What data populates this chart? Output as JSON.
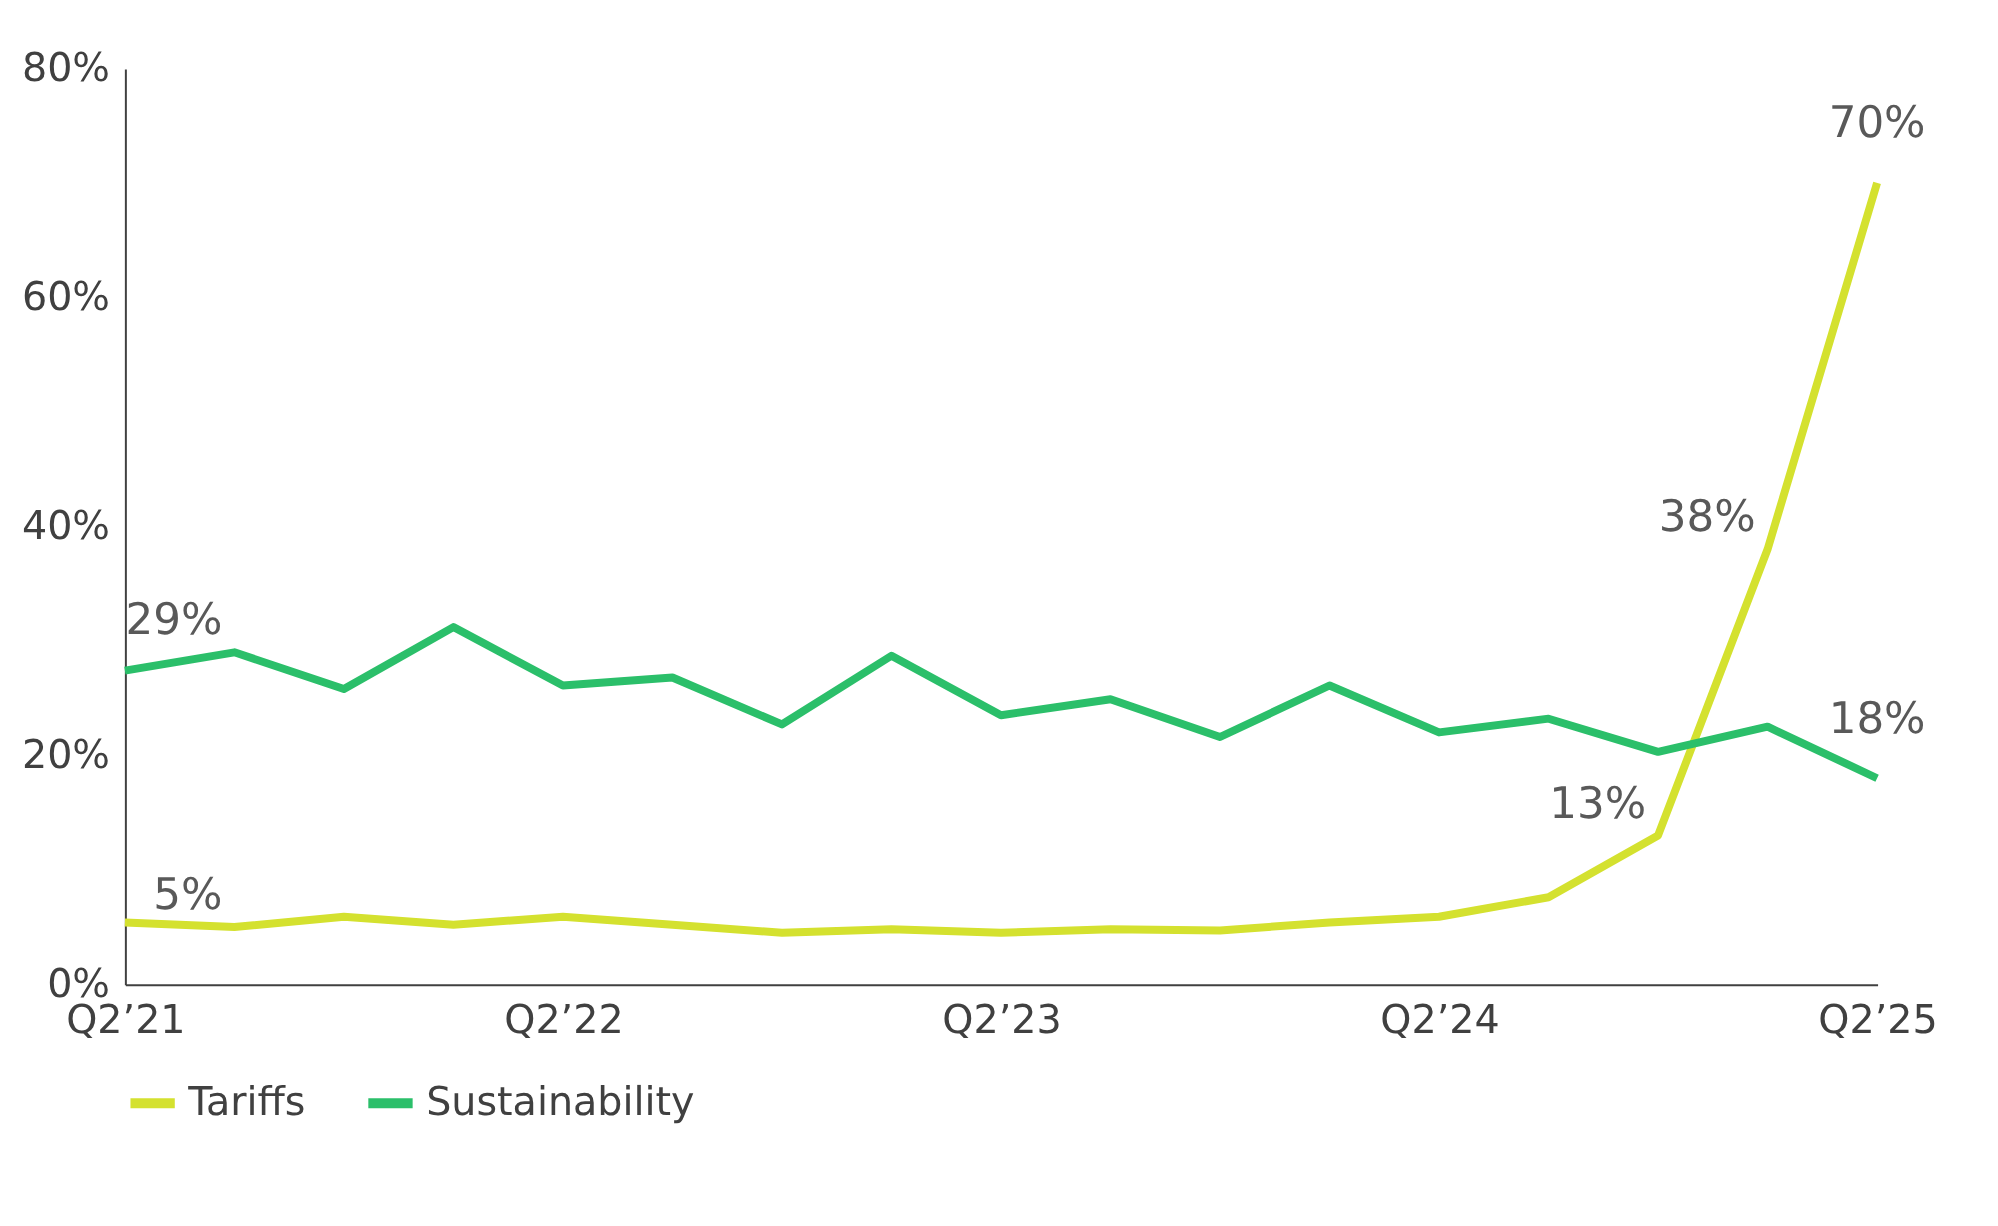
{
  "chart_data": {
    "type": "line",
    "categories": [
      "Q2’21",
      null,
      null,
      null,
      "Q2’22",
      null,
      null,
      null,
      "Q2’23",
      null,
      null,
      null,
      "Q2’24",
      null,
      null,
      null,
      "Q2’25"
    ],
    "series": [
      {
        "name": "Tariffs",
        "color": "#d4e12f",
        "values": [
          5.4,
          5,
          5.9,
          5.2,
          5.9,
          5.2,
          4.5,
          4.8,
          4.5,
          4.8,
          4.7,
          5.4,
          5.9,
          7.6,
          13,
          38,
          70
        ],
        "value_labels": [
          null,
          "5%",
          null,
          null,
          null,
          null,
          null,
          null,
          null,
          null,
          null,
          null,
          null,
          null,
          "13%",
          "38%",
          "70%"
        ]
      },
      {
        "name": "Sustainability",
        "color": "#2bbf6a",
        "values": [
          27.4,
          29,
          25.8,
          31.2,
          26.1,
          26.8,
          22.7,
          28.7,
          23.5,
          24.9,
          21.6,
          26.1,
          22.0,
          23.2,
          20.3,
          22.5,
          18
        ],
        "value_labels": [
          null,
          "29%",
          null,
          null,
          null,
          null,
          null,
          null,
          null,
          null,
          null,
          null,
          null,
          null,
          null,
          null,
          "18%"
        ]
      }
    ],
    "ylim": [
      0,
      80
    ],
    "yticks": [
      {
        "value": 0,
        "label": "0%"
      },
      {
        "value": 20,
        "label": "20%"
      },
      {
        "value": 40,
        "label": "40%"
      },
      {
        "value": 60,
        "label": "60%"
      },
      {
        "value": 80,
        "label": "80%"
      }
    ],
    "grid": false,
    "legend": "bottom",
    "marker": "none",
    "line_style": "solid"
  }
}
